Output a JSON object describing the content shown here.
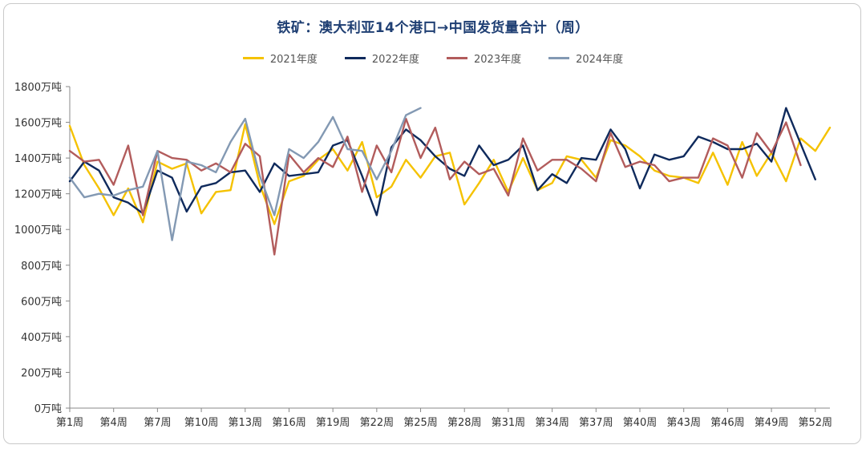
{
  "chart_data": {
    "type": "line",
    "title": "铁矿：澳大利亚14个港口→中国发货量合计（周）",
    "ylabel": "",
    "xlabel": "",
    "y_unit": "万吨",
    "ylim": [
      0,
      1800
    ],
    "y_ticks": [
      "0万吨",
      "200万吨",
      "400万吨",
      "600万吨",
      "800万吨",
      "1000万吨",
      "1200万吨",
      "1400万吨",
      "1600万吨",
      "1800万吨"
    ],
    "x_tick_labels": [
      "第1周",
      "第4周",
      "第7周",
      "第10周",
      "第13周",
      "第16周",
      "第19周",
      "第22周",
      "第25周",
      "第28周",
      "第31周",
      "第34周",
      "第37周",
      "第40周",
      "第43周",
      "第46周",
      "第49周",
      "第52周"
    ],
    "x_tick_weeks": [
      1,
      4,
      7,
      10,
      13,
      16,
      19,
      22,
      25,
      28,
      31,
      34,
      37,
      40,
      43,
      46,
      49,
      52
    ],
    "legend_position": "top-center",
    "grid": false,
    "series": [
      {
        "name": "2021年度",
        "color": "#f5c200",
        "values": [
          1580,
          1360,
          1230,
          1080,
          1230,
          1040,
          1380,
          1340,
          1370,
          1090,
          1210,
          1220,
          1590,
          1250,
          1030,
          1270,
          1300,
          1390,
          1450,
          1330,
          1490,
          1180,
          1240,
          1390,
          1290,
          1410,
          1430,
          1140,
          1260,
          1390,
          1210,
          1400,
          1220,
          1260,
          1410,
          1390,
          1290,
          1500,
          1470,
          1410,
          1330,
          1300,
          1290,
          1260,
          1430,
          1250,
          1490,
          1300,
          1430,
          1270,
          1510,
          1440,
          1570
        ]
      },
      {
        "name": "2022年度",
        "color": "#0f2a5c",
        "values": [
          1270,
          1380,
          1330,
          1180,
          1150,
          1090,
          1330,
          1290,
          1100,
          1240,
          1260,
          1320,
          1330,
          1210,
          1370,
          1300,
          1310,
          1320,
          1470,
          1500,
          1300,
          1080,
          1460,
          1560,
          1500,
          1410,
          1340,
          1300,
          1470,
          1360,
          1390,
          1470,
          1220,
          1310,
          1260,
          1400,
          1390,
          1560,
          1450,
          1230,
          1420,
          1390,
          1410,
          1520,
          1490,
          1450,
          1450,
          1480,
          1380,
          1680,
          1480,
          1280
        ]
      },
      {
        "name": "2023年度",
        "color": "#b25c5c",
        "values": [
          1440,
          1380,
          1390,
          1250,
          1470,
          1080,
          1440,
          1400,
          1390,
          1330,
          1370,
          1320,
          1480,
          1410,
          860,
          1420,
          1320,
          1400,
          1350,
          1520,
          1210,
          1470,
          1320,
          1620,
          1400,
          1570,
          1280,
          1380,
          1310,
          1340,
          1190,
          1510,
          1330,
          1390,
          1390,
          1340,
          1270,
          1540,
          1350,
          1380,
          1360,
          1270,
          1290,
          1290,
          1510,
          1470,
          1290,
          1540,
          1430,
          1600,
          1360
        ]
      },
      {
        "name": "2024年度",
        "color": "#8399b3",
        "values": [
          1290,
          1180,
          1200,
          1190,
          1220,
          1240,
          1440,
          940,
          1380,
          1360,
          1320,
          1490,
          1620,
          1300,
          1080,
          1450,
          1400,
          1490,
          1630,
          1450,
          1440,
          1280,
          1440,
          1640,
          1680
        ]
      }
    ]
  }
}
